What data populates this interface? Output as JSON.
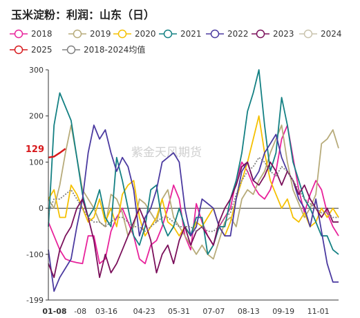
{
  "chart_data": {
    "type": "line",
    "title": "玉米淀粉：利润：山东（日）",
    "watermark": "紫金天风期货",
    "xlabel": "",
    "ylabel": "",
    "ylim": [
      -199,
      300
    ],
    "y_ticks": [
      300,
      200,
      100,
      0,
      -100,
      -199
    ],
    "x_ticks": [
      "01-08",
      "-08",
      "03-16",
      "04-23",
      "05-31",
      "07-07",
      "08-13",
      "09-19",
      "11-01"
    ],
    "x_tick_positions": [
      0,
      0.11,
      0.2,
      0.33,
      0.45,
      0.57,
      0.69,
      0.81,
      0.93
    ],
    "current_label": "129",
    "current_value": 129,
    "legend_position": "top",
    "series": [
      {
        "name": "2018",
        "color": "#e8229b",
        "style": "solid",
        "values": [
          -30,
          -60,
          -90,
          -110,
          -115,
          -118,
          -120,
          -60,
          -60,
          -120,
          -110,
          -50,
          -20,
          0,
          -30,
          -60,
          -110,
          -120,
          -80,
          -70,
          -40,
          0,
          50,
          20,
          -60,
          -90,
          10,
          -30,
          -60,
          -80,
          -40,
          -20,
          0,
          60,
          100,
          80,
          50,
          30,
          20,
          40,
          80,
          150,
          180,
          110,
          40,
          -10,
          30,
          60,
          40,
          -10,
          -40,
          -60
        ]
      },
      {
        "name": "2019",
        "color": "#b7ab7a",
        "style": "solid",
        "values": [
          20,
          0,
          50,
          120,
          180,
          110,
          40,
          20,
          0,
          -30,
          -40,
          30,
          20,
          -10,
          -60,
          -40,
          20,
          10,
          -10,
          -30,
          20,
          40,
          -20,
          -40,
          -60,
          -80,
          -100,
          -80,
          -100,
          -110,
          -70,
          -30,
          -20,
          -40,
          20,
          40,
          30,
          60,
          80,
          120,
          150,
          180,
          100,
          40,
          10,
          -20,
          0,
          30,
          140,
          150,
          170,
          130
        ]
      },
      {
        "name": "2020",
        "color": "#f5c000",
        "style": "solid",
        "values": [
          20,
          40,
          -20,
          -20,
          50,
          30,
          0,
          -30,
          -20,
          20,
          -30,
          0,
          -40,
          30,
          50,
          60,
          -20,
          -60,
          -40,
          -20,
          20,
          -30,
          -40,
          -60,
          -40,
          -60,
          -30,
          -40,
          -20,
          0,
          -40,
          -60,
          -30,
          20,
          60,
          100,
          150,
          200,
          120,
          60,
          30,
          0,
          20,
          -20,
          -30,
          -10,
          -40,
          -30,
          0,
          -20,
          0,
          -20
        ]
      },
      {
        "name": "2021",
        "color": "#138083",
        "style": "solid",
        "values": [
          -40,
          180,
          250,
          220,
          190,
          110,
          30,
          -20,
          0,
          40,
          -20,
          -40,
          110,
          60,
          0,
          -60,
          -80,
          -40,
          40,
          50,
          -30,
          -60,
          -40,
          0,
          -40,
          -60,
          -20,
          -20,
          -100,
          -80,
          -40,
          -40,
          20,
          60,
          120,
          210,
          250,
          300,
          180,
          80,
          120,
          240,
          180,
          100,
          60,
          20,
          0,
          -30,
          -60,
          -60,
          -90,
          -100
        ]
      },
      {
        "name": "2022",
        "color": "#4b3aa0",
        "style": "solid",
        "values": [
          -90,
          -180,
          -150,
          -130,
          -110,
          -40,
          20,
          120,
          180,
          150,
          170,
          120,
          80,
          110,
          90,
          40,
          -60,
          -20,
          0,
          40,
          100,
          110,
          120,
          100,
          0,
          -60,
          -40,
          20,
          10,
          0,
          -40,
          -60,
          -60,
          20,
          80,
          100,
          60,
          80,
          120,
          140,
          160,
          110,
          80,
          60,
          20,
          0,
          -40,
          20,
          -50,
          -120,
          -160,
          -160
        ]
      },
      {
        "name": "2023",
        "color": "#7a0f5a",
        "style": "solid",
        "values": [
          -120,
          -150,
          -90,
          -60,
          -40,
          0,
          20,
          -20,
          -70,
          -150,
          -100,
          -140,
          -120,
          -90,
          -60,
          -30,
          0,
          -30,
          -70,
          -140,
          -100,
          -80,
          -120,
          -70,
          -40,
          -80,
          -50,
          -40,
          -60,
          -80,
          -30,
          0,
          20,
          50,
          90,
          100,
          60,
          50,
          70,
          100,
          80,
          50,
          80,
          60,
          30,
          50,
          20,
          0,
          -20,
          0,
          -30,
          -30
        ]
      },
      {
        "name": "2024",
        "color": "#c9c3ad",
        "style": "solid",
        "values": []
      },
      {
        "name": "2025",
        "color": "#d7191c",
        "style": "solid",
        "values": [
          110,
          112,
          120,
          129
        ]
      },
      {
        "name": "2018-2024均值",
        "color": "#808080",
        "style": "dotted",
        "values": [
          -10,
          20,
          20,
          30,
          40,
          20,
          0,
          -20,
          -30,
          -30,
          -40,
          -30,
          -20,
          -20,
          -30,
          -40,
          -40,
          -50,
          -40,
          -30,
          -20,
          -20,
          -30,
          -40,
          -40,
          -40,
          -50,
          -40,
          -50,
          -50,
          -40,
          -20,
          -10,
          30,
          60,
          80,
          90,
          110,
          100,
          80,
          70,
          90,
          80,
          60,
          40,
          20,
          10,
          0,
          -10,
          -10,
          -20,
          -20
        ]
      }
    ]
  }
}
